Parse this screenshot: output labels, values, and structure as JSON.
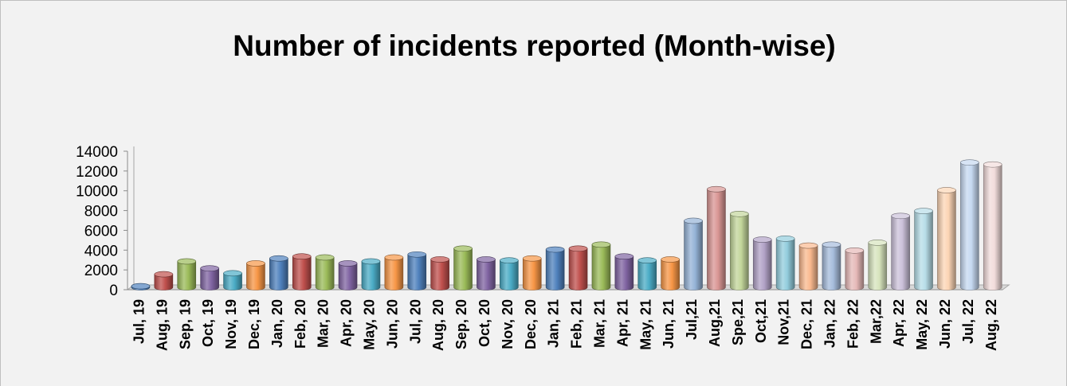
{
  "chart_data": {
    "type": "bar",
    "title": "Number of incidents reported (Month-wise)",
    "xlabel": "",
    "ylabel": "",
    "ylim": [
      0,
      14000
    ],
    "yticks": [
      0,
      2000,
      4000,
      6000,
      8000,
      10000,
      12000,
      14000
    ],
    "grid": false,
    "legend": "none",
    "style": "3d-cylinder",
    "categories": [
      "Jul, 19",
      "Aug, 19",
      "Sep, 19",
      "Oct, 19",
      "Nov, 19",
      "Dec, 19",
      "Jan, 20",
      "Feb, 20",
      "Mar, 20",
      "Apr, 20",
      "May, 20",
      "Jun, 20",
      "Jul, 20",
      "Aug, 20",
      "Sep, 20",
      "Oct, 20",
      "Nov, 20",
      "Dec, 20",
      "Jan, 21",
      "Feb, 21",
      "Mar, 21",
      "Apr, 21",
      "May, 21",
      "Jun, 21",
      "Jul,21",
      "Aug,21",
      "Spe,21",
      "Oct,21",
      "Nov,21",
      "Dec, 21",
      "Jan, 22",
      "Feb, 22",
      "Mar,22",
      "Apr, 22",
      "May, 22",
      "Jun, 22",
      "Jul, 22",
      "Aug, 22"
    ],
    "values": [
      200,
      1400,
      2700,
      2000,
      1500,
      2500,
      3000,
      3200,
      3100,
      2500,
      2700,
      3100,
      3400,
      2900,
      4000,
      2900,
      2800,
      3000,
      3900,
      4000,
      4400,
      3200,
      2800,
      2900,
      6800,
      10000,
      7500,
      4900,
      5000,
      4300,
      4400,
      3800,
      4600,
      7300,
      7800,
      9900,
      12700,
      12500
    ],
    "colors": [
      "#4f81bd",
      "#c0504d",
      "#9bbb59",
      "#8064a2",
      "#4bacc6",
      "#f79646",
      "#4f81bd",
      "#c0504d",
      "#9bbb59",
      "#8064a2",
      "#4bacc6",
      "#f79646",
      "#4f81bd",
      "#c0504d",
      "#9bbb59",
      "#8064a2",
      "#4bacc6",
      "#f79646",
      "#4f81bd",
      "#c0504d",
      "#9bbb59",
      "#8064a2",
      "#4bacc6",
      "#f79646",
      "#95b3d7",
      "#d99694",
      "#c3d69b",
      "#b2a2c7",
      "#93cddd",
      "#fab98f",
      "#a6bcdc",
      "#e6b9b8",
      "#d7e4bd",
      "#ccc1da",
      "#b7dde8",
      "#fcd5b5",
      "#c6d9f1",
      "#f2dcdb"
    ]
  }
}
